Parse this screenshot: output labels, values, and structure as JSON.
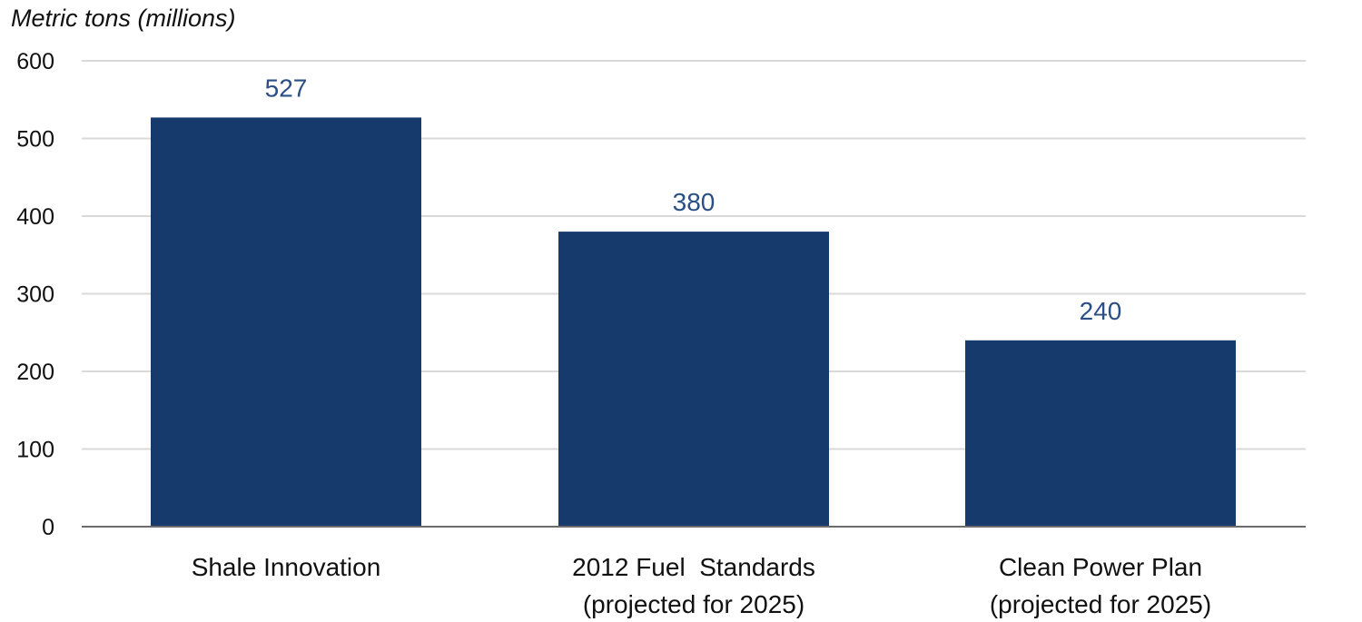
{
  "chart_data": {
    "type": "bar",
    "title": "",
    "xlabel": "",
    "ylabel": "Metric tons (millions)",
    "ylim": [
      0,
      600
    ],
    "yticks": [
      0,
      100,
      200,
      300,
      400,
      500,
      600
    ],
    "grid": true,
    "categories": [
      [
        "Shale Innovation"
      ],
      [
        "2012 Fuel  Standards",
        "(projected for 2025)"
      ],
      [
        "Clean Power Plan",
        "(projected for 2025)"
      ]
    ],
    "values": [
      527,
      380,
      240
    ],
    "data_labels": [
      "527",
      "380",
      "240"
    ],
    "colors": {
      "bar": "#153a6b",
      "data_label": "#2a4f86",
      "grid": "#d9d9d9",
      "axis": "#6b6b6b"
    }
  }
}
